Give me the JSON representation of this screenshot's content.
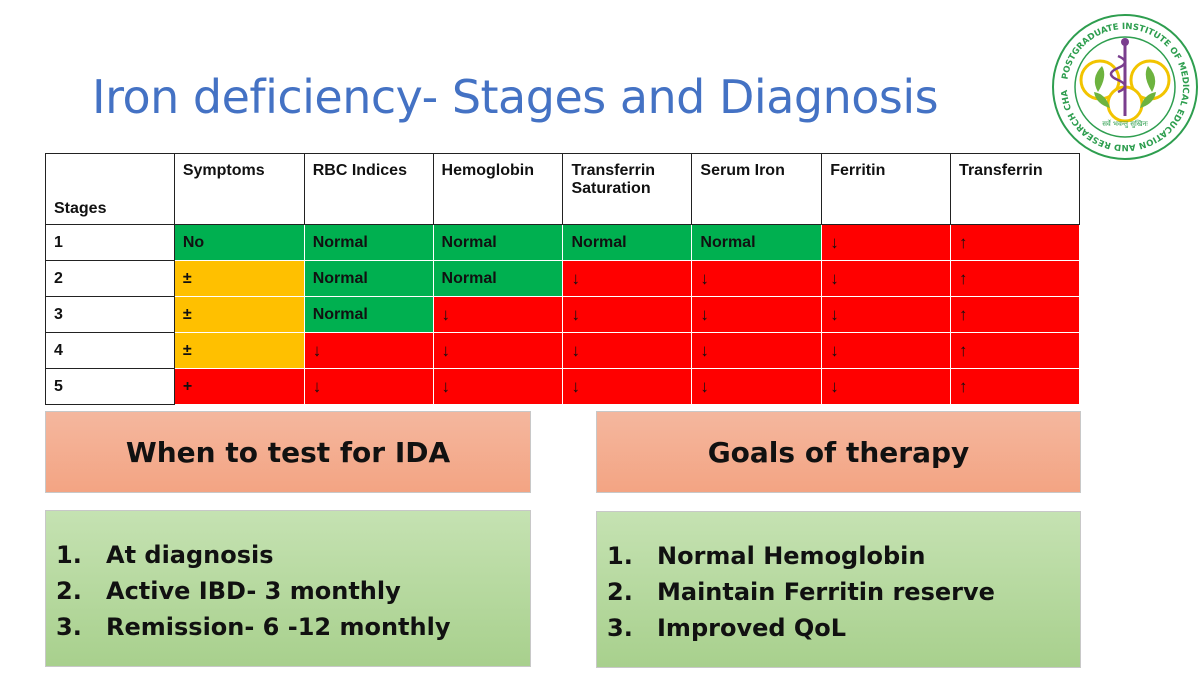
{
  "title": "Iron deficiency- Stages and Diagnosis",
  "logo": {
    "ring_text": "POSTGRADUATE INSTITUTE OF MEDICAL EDUCATION AND RESEARCH CHANDIGARH",
    "motto": "सर्वे भवन्तु सुखिनः",
    "colors": {
      "ring": "#2e9e4f",
      "leaf": "#6db33f",
      "staff": "#7a3e8e"
    }
  },
  "table": {
    "headers": [
      "Stages",
      "Symptoms",
      "RBC Indices",
      "Hemoglobin",
      "Transferrin Saturation",
      "Serum Iron",
      "Ferritin",
      "Transferrin"
    ],
    "header_lines": {
      "Transferrin Saturation": [
        "Transferrin",
        "Saturation"
      ]
    },
    "colors": {
      "green": "#00b050",
      "red": "#ff0000",
      "amber": "#ffc000"
    },
    "rows": [
      {
        "stage": "1",
        "cells": [
          {
            "text": "No",
            "color": "green"
          },
          {
            "text": "Normal",
            "color": "green"
          },
          {
            "text": "Normal",
            "color": "green"
          },
          {
            "text": "Normal",
            "color": "green"
          },
          {
            "text": "Normal",
            "color": "green"
          },
          {
            "text": "↓",
            "color": "red"
          },
          {
            "text": "↑",
            "color": "red"
          }
        ]
      },
      {
        "stage": "2",
        "cells": [
          {
            "text": "±",
            "color": "amber"
          },
          {
            "text": "Normal",
            "color": "green"
          },
          {
            "text": "Normal",
            "color": "green"
          },
          {
            "text": "↓",
            "color": "red"
          },
          {
            "text": "↓",
            "color": "red"
          },
          {
            "text": "↓",
            "color": "red"
          },
          {
            "text": "↑",
            "color": "red"
          }
        ]
      },
      {
        "stage": "3",
        "cells": [
          {
            "text": "±",
            "color": "amber"
          },
          {
            "text": "Normal",
            "color": "green"
          },
          {
            "text": "↓",
            "color": "red"
          },
          {
            "text": "↓",
            "color": "red"
          },
          {
            "text": "↓",
            "color": "red"
          },
          {
            "text": "↓",
            "color": "red"
          },
          {
            "text": "↑",
            "color": "red"
          }
        ]
      },
      {
        "stage": "4",
        "cells": [
          {
            "text": "±",
            "color": "amber"
          },
          {
            "text": "↓",
            "color": "red"
          },
          {
            "text": "↓",
            "color": "red"
          },
          {
            "text": "↓",
            "color": "red"
          },
          {
            "text": "↓",
            "color": "red"
          },
          {
            "text": "↓",
            "color": "red"
          },
          {
            "text": "↑",
            "color": "red"
          }
        ]
      },
      {
        "stage": "5",
        "cells": [
          {
            "text": "+",
            "color": "red"
          },
          {
            "text": "↓",
            "color": "red"
          },
          {
            "text": "↓",
            "color": "red"
          },
          {
            "text": "↓",
            "color": "red"
          },
          {
            "text": "↓",
            "color": "red"
          },
          {
            "text": "↓",
            "color": "red"
          },
          {
            "text": "↑",
            "color": "red"
          }
        ]
      }
    ]
  },
  "when_to_test": {
    "heading": "When to test for IDA",
    "items": [
      {
        "num": "1.",
        "text": "At diagnosis"
      },
      {
        "num": "2.",
        "text": "Active IBD- 3 monthly"
      },
      {
        "num": "3.",
        "text": "Remission- 6 -12 monthly"
      }
    ]
  },
  "goals": {
    "heading": "Goals of therapy",
    "items": [
      {
        "num": "1.",
        "text": "Normal Hemoglobin"
      },
      {
        "num": "2.",
        "text": "Maintain Ferritin reserve"
      },
      {
        "num": "3.",
        "text": "Improved QoL"
      }
    ]
  }
}
